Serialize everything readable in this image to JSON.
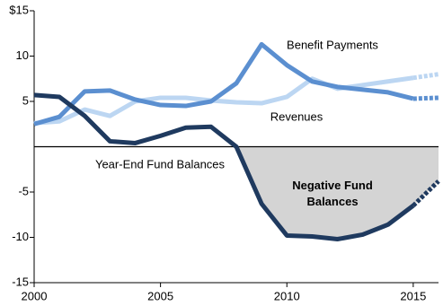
{
  "chart_data": {
    "type": "line",
    "x": [
      2000,
      2001,
      2002,
      2003,
      2004,
      2005,
      2006,
      2007,
      2008,
      2009,
      2010,
      2011,
      2012,
      2013,
      2014,
      2015,
      2016
    ],
    "xlim": [
      2000,
      2016
    ],
    "xticks": [
      2000,
      2005,
      2010,
      2015
    ],
    "ylim": [
      -15,
      15
    ],
    "yticks": [
      {
        "value": 15,
        "label": "$15"
      },
      10,
      5,
      -5,
      -10,
      -15
    ],
    "grid": false,
    "dashed_after": 2015,
    "annotation": "Negative Fund Balances",
    "series": [
      {
        "name": "Revenues",
        "color": "#bcd6f2",
        "values": [
          2.6,
          2.8,
          4.1,
          3.4,
          5.0,
          5.4,
          5.4,
          5.1,
          4.9,
          4.8,
          5.5,
          7.5,
          6.4,
          6.8,
          7.2,
          7.6,
          8.0
        ]
      },
      {
        "name": "Benefit Payments",
        "color": "#5b8fd0",
        "values": [
          2.5,
          3.3,
          6.1,
          6.2,
          5.2,
          4.6,
          4.5,
          5.0,
          7.0,
          11.3,
          9.0,
          7.2,
          6.6,
          6.3,
          6.0,
          5.3,
          5.4
        ]
      },
      {
        "name": "Year-End Fund Balances",
        "color": "#1f3a5f",
        "values": [
          5.7,
          5.5,
          3.4,
          0.6,
          0.4,
          1.2,
          2.1,
          2.2,
          0,
          -6.3,
          -9.8,
          -9.9,
          -10.2,
          -9.7,
          -8.6,
          -6.5,
          -3.8
        ]
      }
    ]
  }
}
